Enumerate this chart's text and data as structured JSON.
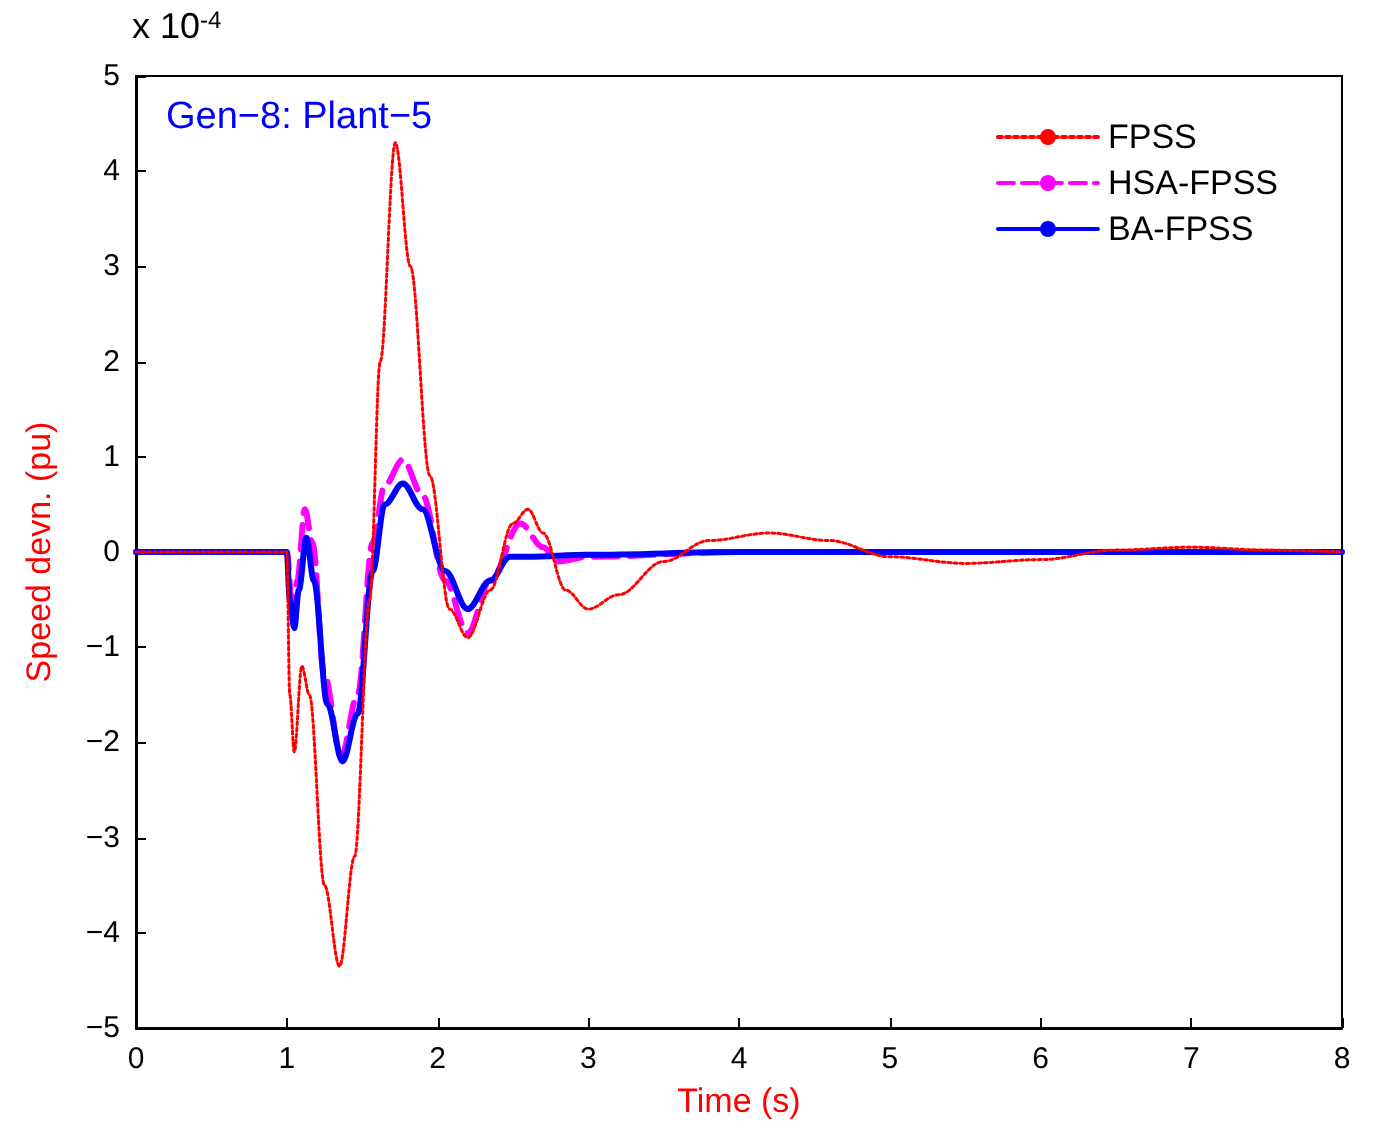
{
  "chart_data": {
    "type": "line",
    "title": "Gen−8: Plant−5",
    "xlabel": "Time (s)",
    "ylabel": "Speed devn. (pu)",
    "annotations": [
      "x 10$^{-4}$"
    ],
    "xlim": [
      0,
      8
    ],
    "xticks": [
      0,
      1,
      2,
      3,
      4,
      5,
      6,
      7,
      8
    ],
    "ylim": [
      -5,
      5
    ],
    "yticks": [
      -5,
      -4,
      -3,
      -2,
      -1,
      0,
      1,
      2,
      3,
      4,
      5
    ],
    "grid": false,
    "legend": "top right",
    "marker": "none",
    "series": [
      {
        "name": "FPSS",
        "color": "#ff0000",
        "line_style": "dotted",
        "x": [
          0,
          1,
          1.02,
          1.05,
          1.1,
          1.15,
          1.25,
          1.35,
          1.45,
          1.55,
          1.62,
          1.72,
          1.82,
          1.95,
          2.08,
          2.2,
          2.35,
          2.5,
          2.6,
          2.7,
          2.85,
          3.0,
          3.2,
          3.5,
          3.8,
          4.2,
          4.6,
          5.0,
          5.5,
          6.0,
          6.5,
          7.0,
          7.5,
          8
        ],
        "values": [
          0,
          0,
          -1.5,
          -2.1,
          -1.2,
          -1.5,
          -3.5,
          -4.35,
          -3.2,
          -0.5,
          2.0,
          4.3,
          3.0,
          0.8,
          -0.6,
          -0.9,
          -0.4,
          0.3,
          0.45,
          0.2,
          -0.4,
          -0.6,
          -0.45,
          -0.1,
          0.12,
          0.2,
          0.12,
          -0.05,
          -0.12,
          -0.08,
          0.02,
          0.05,
          0.02,
          0
        ]
      },
      {
        "name": "HSA-FPSS",
        "color": "#ff00ff",
        "line_style": "dashed",
        "x": [
          0,
          1,
          1.04,
          1.07,
          1.12,
          1.17,
          1.25,
          1.36,
          1.47,
          1.57,
          1.65,
          1.77,
          1.9,
          2.05,
          2.2,
          2.35,
          2.55,
          2.7,
          2.8,
          3.0,
          4,
          8
        ],
        "values": [
          0,
          0,
          -0.7,
          -0.3,
          0.45,
          0.1,
          -1.3,
          -2.15,
          -1.5,
          0.1,
          0.7,
          0.97,
          0.6,
          -0.3,
          -0.85,
          -0.3,
          0.3,
          0.05,
          -0.1,
          -0.05,
          0,
          0
        ]
      },
      {
        "name": "BA-FPSS",
        "color": "#0000ff",
        "line_style": "solid",
        "x": [
          0,
          1,
          1.02,
          1.05,
          1.08,
          1.13,
          1.18,
          1.27,
          1.37,
          1.47,
          1.57,
          1.65,
          1.77,
          1.9,
          2.05,
          2.2,
          2.35,
          2.48,
          2.6,
          3,
          4,
          8
        ],
        "values": [
          0,
          0,
          -0.5,
          -0.8,
          -0.4,
          0.15,
          -0.3,
          -1.6,
          -2.2,
          -1.7,
          -0.2,
          0.5,
          0.72,
          0.45,
          -0.2,
          -0.6,
          -0.3,
          -0.05,
          -0.05,
          -0.03,
          0,
          0
        ]
      }
    ]
  }
}
